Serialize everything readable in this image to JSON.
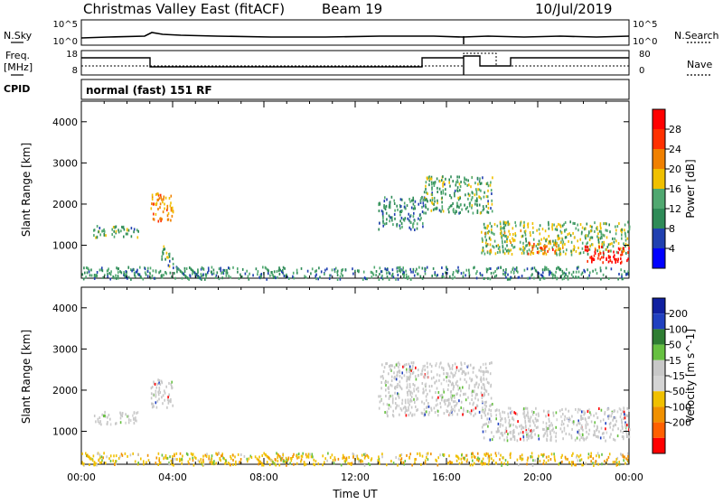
{
  "header": {
    "station": "Christmas Valley East (fitACF)",
    "beam": "Beam 19",
    "date": "10/Jul/2019",
    "mode": "normal (fast) 151 RF"
  },
  "summary_panels": {
    "left_labels": [
      "N.Sky",
      "Freq.",
      "[MHz]",
      "CPID"
    ],
    "right_labels": [
      "N.Search",
      "Nave"
    ],
    "nsky_ticks": [
      "10^5",
      "10^0"
    ],
    "nsearch_ticks": [
      "10^5",
      "10^0"
    ],
    "freq_ticks": [
      "18",
      "8"
    ],
    "nave_ticks": [
      "80",
      "0"
    ]
  },
  "colors": {
    "power": [
      "#0000ff",
      "#2040b0",
      "#2e8b57",
      "#50a870",
      "#f0c000",
      "#f08000",
      "#ff3000",
      "#ff0000"
    ],
    "velocity": [
      "#1020a0",
      "#2040c0",
      "#2e7d32",
      "#66c040",
      "#c8c8c8",
      "#d4d4d4",
      "#f0c000",
      "#f09000",
      "#ff6000",
      "#ff0000"
    ]
  },
  "chart_data": [
    {
      "type": "heatmap",
      "name": "Power",
      "xlabel": "",
      "ylabel": "Slant Range [km]",
      "xlim": [
        "00:00",
        "24:00"
      ],
      "ylim": [
        200,
        4500
      ],
      "yticks": [
        "1000",
        "2000",
        "3000",
        "4000"
      ],
      "colorbar": {
        "label": "Power [dB]",
        "ticks": [
          "4",
          "8",
          "12",
          "16",
          "20",
          "24",
          "28"
        ],
        "range": [
          0,
          30
        ]
      },
      "echo_regions": [
        {
          "t_start": "00:30",
          "t_end": "02:30",
          "range_km": [
            1200,
            1500
          ],
          "value": 12
        },
        {
          "t_start": "03:00",
          "t_end": "04:00",
          "range_km": [
            1600,
            2300
          ],
          "value": 20
        },
        {
          "t_start": "03:30",
          "t_end": "04:00",
          "range_km": [
            500,
            1000
          ],
          "value": 12
        },
        {
          "t_start": "13:00",
          "t_end": "15:00",
          "range_km": [
            1400,
            2200
          ],
          "value": 10
        },
        {
          "t_start": "15:00",
          "t_end": "18:00",
          "range_km": [
            1800,
            2700
          ],
          "value": 12
        },
        {
          "t_start": "17:30",
          "t_end": "24:00",
          "range_km": [
            800,
            1600
          ],
          "value": 14
        },
        {
          "t_start": "19:30",
          "t_end": "21:00",
          "range_km": [
            800,
            1100
          ],
          "value": 22
        },
        {
          "t_start": "22:00",
          "t_end": "24:00",
          "range_km": [
            600,
            1000
          ],
          "value": 28
        },
        {
          "t_start": "00:00",
          "t_end": "24:00",
          "range_km": [
            200,
            500
          ],
          "value": 10
        }
      ]
    },
    {
      "type": "heatmap",
      "name": "Velocity",
      "xlabel": "Time UT",
      "ylabel": "Slant Range [km]",
      "xlim": [
        "00:00",
        "24:00"
      ],
      "ylim": [
        200,
        4500
      ],
      "xticks": [
        "00:00",
        "04:00",
        "08:00",
        "12:00",
        "16:00",
        "20:00",
        "00:00"
      ],
      "yticks": [
        "1000",
        "2000",
        "3000",
        "4000"
      ],
      "colorbar": {
        "label": "Velocity [m s^-1]",
        "ticks": [
          "200",
          "100",
          "50",
          "15",
          "-15",
          "-50",
          "-100",
          "-200"
        ]
      },
      "echo_regions": [
        {
          "t_start": "00:30",
          "t_end": "02:30",
          "range_km": [
            1200,
            1500
          ],
          "value": 0
        },
        {
          "t_start": "03:00",
          "t_end": "04:00",
          "range_km": [
            1600,
            2300
          ],
          "value": 0
        },
        {
          "t_start": "13:00",
          "t_end": "18:00",
          "range_km": [
            1400,
            2700
          ],
          "value": 0
        },
        {
          "t_start": "17:30",
          "t_end": "24:00",
          "range_km": [
            800,
            1600
          ],
          "value": 0
        },
        {
          "t_start": "00:00",
          "t_end": "24:00",
          "range_km": [
            200,
            500
          ],
          "value": -40
        }
      ]
    }
  ]
}
